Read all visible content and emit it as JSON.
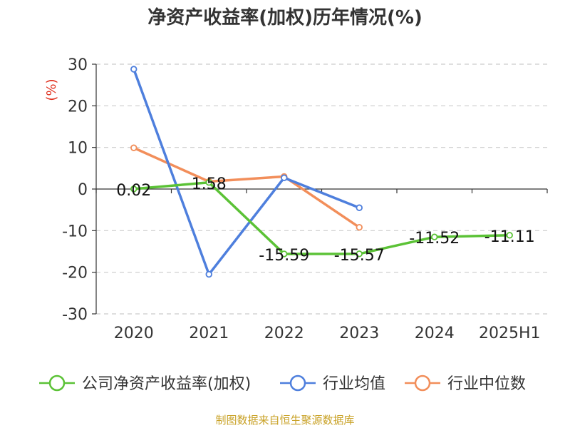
{
  "title": "净资产收益率(加权)历年情况(%)",
  "source": "制图数据来自恒生聚源数据库",
  "chart_data": {
    "type": "line",
    "title": "净资产收益率(加权)历年情况(%)",
    "ylabel": "(%)",
    "ylim": [
      -30,
      30
    ],
    "yticks": [
      30,
      20,
      10,
      0,
      -10,
      -20,
      -30
    ],
    "grid": true,
    "legend_position": "bottom",
    "categories": [
      "2020",
      "2021",
      "2022",
      "2023",
      "2024",
      "2025H1"
    ],
    "series": [
      {
        "name": "公司净资产收益率(加权)",
        "color": "#5bc236",
        "values": [
          0.02,
          1.58,
          -15.59,
          -15.57,
          -11.52,
          -11.11
        ],
        "labels": [
          "0.02",
          "1.58",
          "-15.59",
          "-15.57",
          "-11.52",
          "-11.11"
        ]
      },
      {
        "name": "行业均值",
        "color": "#4e7fdd",
        "values": [
          28.8,
          -20.5,
          2.7,
          -4.5,
          null,
          null
        ]
      },
      {
        "name": "行业中位数",
        "color": "#f28e5a",
        "values": [
          9.9,
          1.8,
          3.0,
          -9.2,
          null,
          null
        ]
      }
    ]
  }
}
